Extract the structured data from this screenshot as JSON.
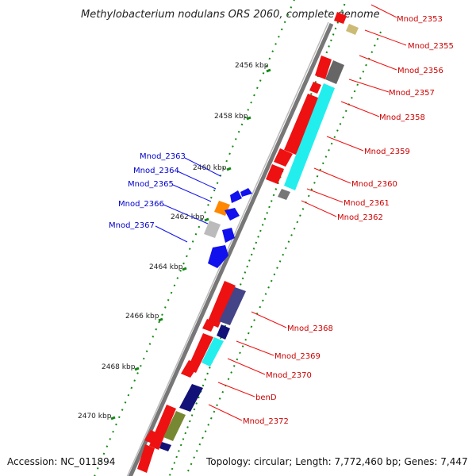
{
  "title": "Methylobacterium nodulans ORS 2060, complete genome",
  "footer": {
    "accession": "Accession: NC_011894",
    "topology": "Topology: circular; Length: 7,772,460 bp; Genes: 7,447"
  },
  "ticks": [
    "2456 kbp",
    "2458 kbp",
    "2460 kbp",
    "2462 kbp",
    "2464 kbp",
    "2466 kbp",
    "2468 kbp",
    "2470 kbp"
  ],
  "right_labels": [
    "Mnod_2353",
    "Mnod_2355",
    "Mnod_2356",
    "Mnod_2357",
    "Mnod_2358",
    "Mnod_2359",
    "Mnod_2360",
    "Mnod_2361",
    "Mnod_2362",
    "Mnod_2368",
    "Mnod_2369",
    "Mnod_2370",
    "benD",
    "Mnod_2372"
  ],
  "left_labels": [
    "Mnod_2363",
    "Mnod_2364",
    "Mnod_2365",
    "Mnod_2366",
    "Mnod_2367"
  ],
  "colors": {
    "forward_cds": "#ee1111",
    "reverse_cds": "#1111ee",
    "accent_cyan": "#22eeee",
    "accent_gray": "#777777",
    "accent_navy": "#111177",
    "accent_orange": "#ff8800",
    "accent_olive": "#778833",
    "tick_green": "#118811",
    "backbone": "#777777"
  }
}
